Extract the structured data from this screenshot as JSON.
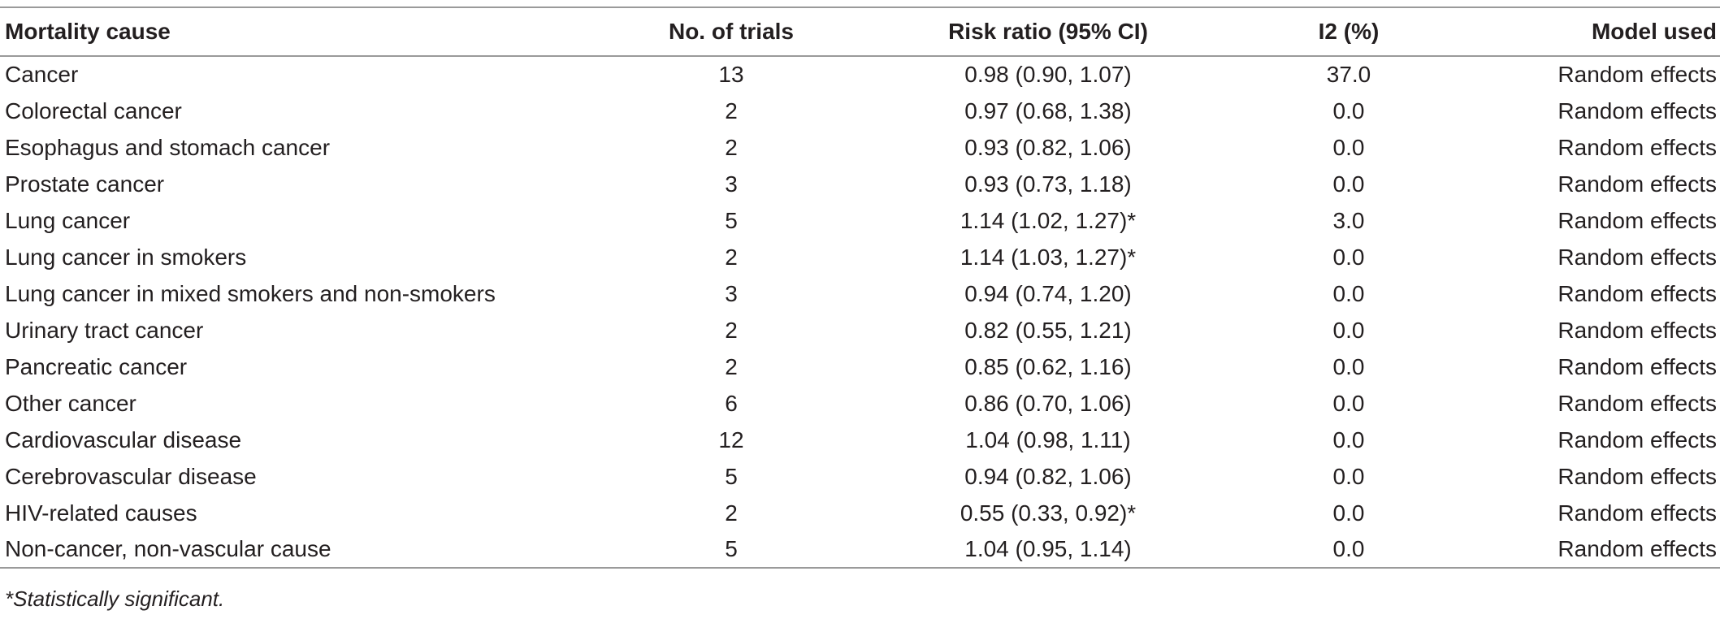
{
  "table": {
    "headers": {
      "cause": "Mortality cause",
      "trials": "No. of trials",
      "risk_ratio": "Risk ratio (95% CI)",
      "i2": "I2 (%)",
      "model": "Model used"
    },
    "rows": [
      {
        "cause": "Cancer",
        "trials": "13",
        "risk_ratio": "0.98 (0.90, 1.07)",
        "i2": "37.0",
        "model": "Random effects"
      },
      {
        "cause": "Colorectal cancer",
        "trials": "2",
        "risk_ratio": "0.97 (0.68, 1.38)",
        "i2": "0.0",
        "model": "Random effects"
      },
      {
        "cause": "Esophagus and stomach cancer",
        "trials": "2",
        "risk_ratio": "0.93 (0.82, 1.06)",
        "i2": "0.0",
        "model": "Random effects"
      },
      {
        "cause": "Prostate cancer",
        "trials": "3",
        "risk_ratio": "0.93 (0.73, 1.18)",
        "i2": "0.0",
        "model": "Random effects"
      },
      {
        "cause": "Lung cancer",
        "trials": "5",
        "risk_ratio": "1.14 (1.02, 1.27)*",
        "i2": "3.0",
        "model": "Random effects"
      },
      {
        "cause": "Lung cancer in smokers",
        "trials": "2",
        "risk_ratio": "1.14 (1.03, 1.27)*",
        "i2": "0.0",
        "model": "Random effects"
      },
      {
        "cause": "Lung cancer in mixed smokers and non-smokers",
        "trials": "3",
        "risk_ratio": "0.94 (0.74, 1.20)",
        "i2": "0.0",
        "model": "Random effects"
      },
      {
        "cause": "Urinary tract cancer",
        "trials": "2",
        "risk_ratio": "0.82 (0.55, 1.21)",
        "i2": "0.0",
        "model": "Random effects"
      },
      {
        "cause": "Pancreatic cancer",
        "trials": "2",
        "risk_ratio": "0.85 (0.62, 1.16)",
        "i2": "0.0",
        "model": "Random effects"
      },
      {
        "cause": "Other cancer",
        "trials": "6",
        "risk_ratio": "0.86 (0.70, 1.06)",
        "i2": "0.0",
        "model": "Random effects"
      },
      {
        "cause": "Cardiovascular disease",
        "trials": "12",
        "risk_ratio": "1.04 (0.98, 1.11)",
        "i2": "0.0",
        "model": "Random effects"
      },
      {
        "cause": "Cerebrovascular disease",
        "trials": "5",
        "risk_ratio": "0.94 (0.82, 1.06)",
        "i2": "0.0",
        "model": "Random effects"
      },
      {
        "cause": "HIV-related causes",
        "trials": "2",
        "risk_ratio": "0.55 (0.33, 0.92)*",
        "i2": "0.0",
        "model": "Random effects"
      },
      {
        "cause": "Non-cancer, non-vascular cause",
        "trials": "5",
        "risk_ratio": "1.04 (0.95, 1.14)",
        "i2": "0.0",
        "model": "Random effects"
      }
    ]
  },
  "footnote": "*Statistically significant."
}
